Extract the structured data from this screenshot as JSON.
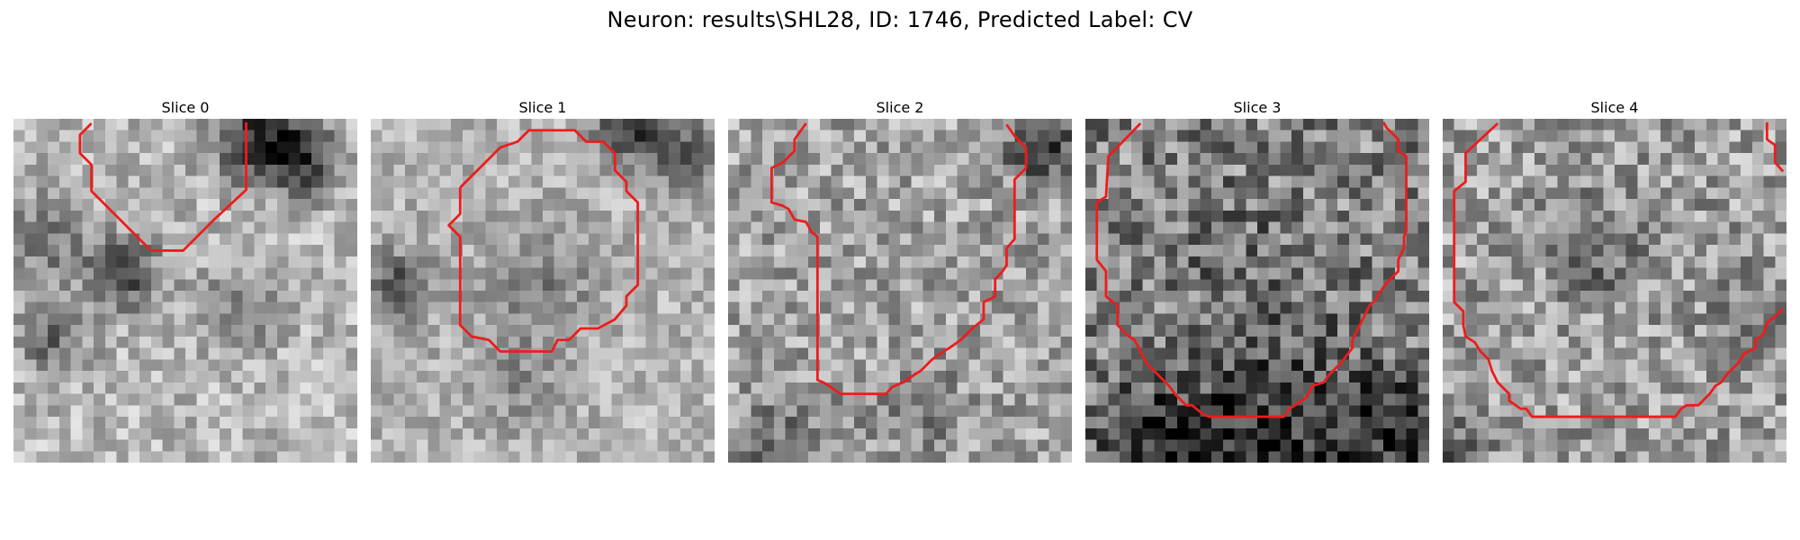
{
  "figure": {
    "title": "Neuron: results\\SHL28, ID: 1746, Predicted Label: CV"
  },
  "slices": [
    {
      "title": "Slice 0"
    },
    {
      "title": "Slice 1"
    },
    {
      "title": "Slice 2"
    },
    {
      "title": "Slice 3"
    },
    {
      "title": "Slice 4"
    }
  ],
  "colors": {
    "contour": "#ee1c1c",
    "colormap": "gray"
  }
}
